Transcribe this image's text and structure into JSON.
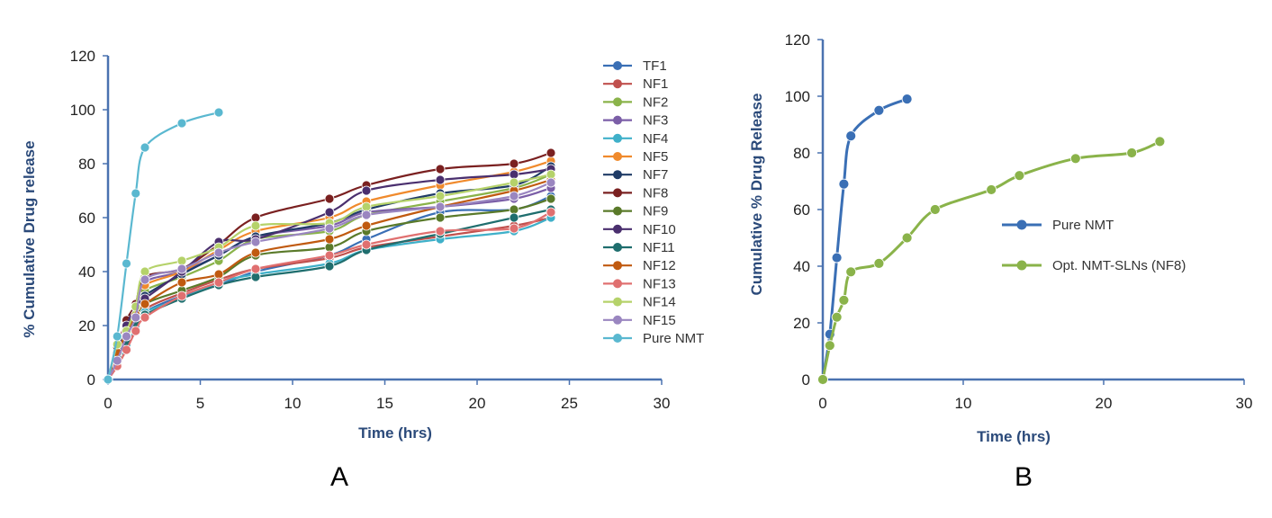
{
  "chart_data": [
    {
      "panel_label": "A",
      "type": "line",
      "xlabel": "Time (hrs)",
      "ylabel": "% Cumulative Drug release",
      "xlim": [
        0,
        30
      ],
      "ylim": [
        0,
        120
      ],
      "xticks": [
        "0",
        "5",
        "10",
        "15",
        "20",
        "25",
        "30"
      ],
      "yticks": [
        "0",
        "20",
        "40",
        "60",
        "80",
        "100",
        "120"
      ],
      "grid": false,
      "legend": "right",
      "series": [
        {
          "name": "TF1",
          "color": "#3a6fb5",
          "x": [
            0,
            0.5,
            1,
            1.5,
            2,
            4,
            6,
            8,
            12,
            14,
            18,
            22,
            24
          ],
          "y": [
            0,
            7,
            11,
            19,
            25,
            31,
            35,
            40,
            46,
            52,
            62,
            63,
            68
          ]
        },
        {
          "name": "NF1",
          "color": "#c0504d",
          "x": [
            0,
            0.5,
            1,
            1.5,
            2,
            4,
            6,
            8,
            12,
            14,
            18,
            22,
            24
          ],
          "y": [
            0,
            5,
            12,
            19,
            26,
            32,
            37,
            41,
            45,
            49,
            53,
            57,
            60
          ]
        },
        {
          "name": "NF2",
          "color": "#8ab34a",
          "x": [
            0,
            0.5,
            1,
            1.5,
            2,
            4,
            6,
            8,
            12,
            14,
            18,
            22,
            24
          ],
          "y": [
            0,
            11,
            18,
            26,
            33,
            38,
            44,
            52,
            55,
            61,
            66,
            71,
            76
          ]
        },
        {
          "name": "NF3",
          "color": "#7b5ea7",
          "x": [
            0,
            0.5,
            1,
            1.5,
            2,
            4,
            6,
            8,
            12,
            14,
            18,
            22,
            24
          ],
          "y": [
            0,
            8,
            17,
            25,
            36,
            40,
            46,
            53,
            57,
            62,
            64,
            67,
            71
          ]
        },
        {
          "name": "NF4",
          "color": "#3fb0c9",
          "x": [
            0,
            0.5,
            1,
            1.5,
            2,
            4,
            6,
            8,
            12,
            14,
            18,
            22,
            24
          ],
          "y": [
            0,
            6,
            13,
            20,
            25,
            30,
            36,
            39,
            43,
            48,
            52,
            55,
            60
          ]
        },
        {
          "name": "NF5",
          "color": "#f08a2c",
          "x": [
            0,
            0.5,
            1,
            1.5,
            2,
            4,
            6,
            8,
            12,
            14,
            18,
            22,
            24
          ],
          "y": [
            0,
            11,
            19,
            28,
            35,
            40,
            48,
            55,
            60,
            66,
            72,
            77,
            81
          ]
        },
        {
          "name": "NF7",
          "color": "#1f3b66",
          "x": [
            0,
            0.5,
            1,
            1.5,
            2,
            4,
            6,
            8,
            12,
            14,
            18,
            22,
            24
          ],
          "y": [
            0,
            9,
            17,
            24,
            31,
            39,
            46,
            53,
            58,
            63,
            69,
            72,
            79
          ]
        },
        {
          "name": "NF8",
          "color": "#7a2020",
          "x": [
            0,
            0.5,
            1,
            1.5,
            2,
            4,
            6,
            8,
            12,
            14,
            18,
            22,
            24
          ],
          "y": [
            0,
            12,
            22,
            28,
            38,
            41,
            50,
            60,
            67,
            72,
            78,
            80,
            84
          ]
        },
        {
          "name": "NF9",
          "color": "#5a7a2a",
          "x": [
            0,
            0.5,
            1,
            1.5,
            2,
            4,
            6,
            8,
            12,
            14,
            18,
            22,
            24
          ],
          "y": [
            0,
            9,
            16,
            22,
            28,
            33,
            38,
            46,
            49,
            55,
            60,
            63,
            67
          ]
        },
        {
          "name": "NF10",
          "color": "#4a2f6e",
          "x": [
            0,
            0.5,
            1,
            1.5,
            2,
            4,
            6,
            8,
            12,
            14,
            18,
            22,
            24
          ],
          "y": [
            0,
            10,
            20,
            27,
            30,
            40,
            51,
            52,
            62,
            70,
            74,
            76,
            78
          ]
        },
        {
          "name": "NF11",
          "color": "#1f6e6e",
          "x": [
            0,
            0.5,
            1,
            1.5,
            2,
            4,
            6,
            8,
            12,
            14,
            18,
            22,
            24
          ],
          "y": [
            0,
            8,
            14,
            21,
            24,
            30,
            35,
            38,
            42,
            48,
            54,
            60,
            63
          ]
        },
        {
          "name": "NF12",
          "color": "#c05a10",
          "x": [
            0,
            0.5,
            1,
            1.5,
            2,
            4,
            6,
            8,
            12,
            14,
            18,
            22,
            24
          ],
          "y": [
            0,
            10,
            17,
            24,
            28,
            36,
            39,
            47,
            52,
            57,
            64,
            70,
            74
          ]
        },
        {
          "name": "NF13",
          "color": "#e07070",
          "x": [
            0,
            0.5,
            1,
            1.5,
            2,
            4,
            6,
            8,
            12,
            14,
            18,
            22,
            24
          ],
          "y": [
            0,
            5,
            11,
            18,
            23,
            31,
            36,
            41,
            46,
            50,
            55,
            56,
            62
          ]
        },
        {
          "name": "NF14",
          "color": "#b5d26a",
          "x": [
            0,
            0.5,
            1,
            1.5,
            2,
            4,
            6,
            8,
            12,
            14,
            18,
            22,
            24
          ],
          "y": [
            0,
            13,
            18,
            27,
            40,
            44,
            49,
            57,
            58,
            64,
            68,
            73,
            76
          ]
        },
        {
          "name": "NF15",
          "color": "#9a86c0",
          "x": [
            0,
            0.5,
            1,
            1.5,
            2,
            4,
            6,
            8,
            12,
            14,
            18,
            22,
            24
          ],
          "y": [
            0,
            7,
            16,
            23,
            37,
            41,
            47,
            51,
            56,
            61,
            64,
            68,
            73
          ]
        },
        {
          "name": "Pure NMT",
          "color": "#5ab8d0",
          "x": [
            0,
            0.5,
            1,
            1.5,
            2,
            4,
            6
          ],
          "y": [
            0,
            16,
            43,
            69,
            86,
            95,
            99
          ]
        }
      ]
    },
    {
      "panel_label": "B",
      "type": "line",
      "xlabel": "Time (hrs)",
      "ylabel": "Cumulative % Drug Release",
      "xlim": [
        0,
        30
      ],
      "ylim": [
        0,
        120
      ],
      "xticks": [
        "0",
        "10",
        "20",
        "30"
      ],
      "yticks": [
        "0",
        "20",
        "40",
        "60",
        "80",
        "100",
        "120"
      ],
      "grid": false,
      "legend": "right",
      "series": [
        {
          "name": "Pure NMT",
          "color": "#3a6fb5",
          "x": [
            0,
            0.5,
            1,
            1.5,
            2,
            4,
            6
          ],
          "y": [
            0,
            16,
            43,
            69,
            86,
            95,
            99
          ]
        },
        {
          "name": "Opt. NMT-SLNs (NF8)",
          "color": "#8ab34a",
          "x": [
            0,
            0.5,
            1,
            1.5,
            2,
            4,
            6,
            8,
            12,
            14,
            18,
            22,
            24
          ],
          "y": [
            0,
            12,
            22,
            28,
            38,
            41,
            50,
            60,
            67,
            72,
            78,
            80,
            84
          ]
        }
      ]
    }
  ]
}
